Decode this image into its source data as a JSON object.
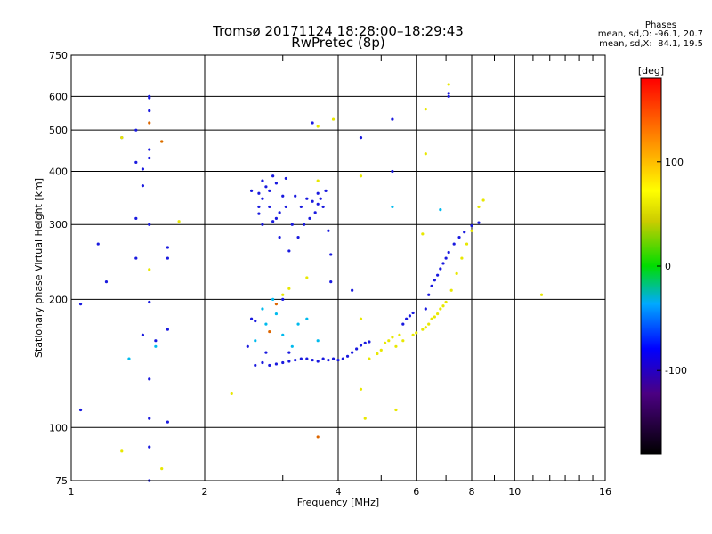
{
  "header": {
    "title_line1": "Tromsø 20171124 18:28:00–18:29:43",
    "title_line2": "RwPretec (8p)",
    "phases_heading": "Phases",
    "phases_o": "mean, sd,O: -96.1, 20.7",
    "phases_x": "mean, sd,X:  84.1, 19.5"
  },
  "colorbar": {
    "unit": "[deg]",
    "ticks": [
      "100",
      "0",
      "-100"
    ],
    "tick_values": [
      100,
      0,
      -100
    ],
    "range": [
      -180,
      180
    ]
  },
  "chart_data": {
    "type": "scatter",
    "title": "Tromsø 20171124 18:28:00–18:29:43",
    "subtitle": "RwPretec (8p)",
    "xlabel": "Frequency [MHz]",
    "ylabel": "Stationary phase Virtual Height [km]",
    "x_scale": "log2",
    "y_scale": "log",
    "xlim": [
      1,
      16
    ],
    "ylim": [
      75,
      750
    ],
    "x_ticks": [
      "1",
      "2",
      "4",
      "6",
      "8",
      "10",
      "16"
    ],
    "x_tick_values": [
      1,
      2,
      4,
      6,
      8,
      10,
      16
    ],
    "y_ticks": [
      "750",
      "600",
      "500",
      "400",
      "300",
      "200",
      "100",
      "75"
    ],
    "y_tick_values": [
      750,
      600,
      500,
      400,
      300,
      200,
      100,
      75
    ],
    "series": [
      {
        "values": [
          [
            1.05,
            195
          ],
          [
            1.05,
            110
          ],
          [
            1.15,
            270
          ],
          [
            1.2,
            220
          ],
          [
            1.3,
            480
          ],
          [
            1.4,
            420
          ],
          [
            1.4,
            500
          ],
          [
            1.4,
            250
          ],
          [
            1.4,
            310
          ],
          [
            1.45,
            405
          ],
          [
            1.45,
            370
          ],
          [
            1.45,
            165
          ],
          [
            1.5,
            600
          ],
          [
            1.5,
            595
          ],
          [
            1.5,
            555
          ],
          [
            1.5,
            450
          ],
          [
            1.5,
            430
          ],
          [
            1.5,
            300
          ],
          [
            1.5,
            197
          ],
          [
            1.5,
            130
          ],
          [
            1.5,
            105
          ],
          [
            1.5,
            90
          ],
          [
            1.5,
            75
          ],
          [
            1.55,
            160
          ],
          [
            1.65,
            265
          ],
          [
            1.65,
            250
          ],
          [
            1.65,
            103
          ],
          [
            1.65,
            170
          ],
          [
            2.5,
            155
          ],
          [
            2.55,
            180
          ],
          [
            2.55,
            360
          ],
          [
            2.6,
            178
          ],
          [
            2.6,
            140
          ],
          [
            2.65,
            355
          ],
          [
            2.65,
            318
          ],
          [
            2.65,
            330
          ],
          [
            2.7,
            345
          ],
          [
            2.7,
            380
          ],
          [
            2.7,
            300
          ],
          [
            2.75,
            368
          ],
          [
            2.75,
            150
          ],
          [
            2.8,
            360
          ],
          [
            2.8,
            330
          ],
          [
            2.85,
            390
          ],
          [
            2.85,
            305
          ],
          [
            2.9,
            375
          ],
          [
            2.9,
            310
          ],
          [
            2.95,
            280
          ],
          [
            2.95,
            320
          ],
          [
            3.0,
            350
          ],
          [
            3.0,
            200
          ],
          [
            3.05,
            385
          ],
          [
            3.05,
            330
          ],
          [
            3.1,
            150
          ],
          [
            3.1,
            260
          ],
          [
            3.15,
            300
          ],
          [
            3.2,
            350
          ],
          [
            3.25,
            280
          ],
          [
            3.3,
            330
          ],
          [
            3.35,
            300
          ],
          [
            3.4,
            345
          ],
          [
            3.45,
            310
          ],
          [
            3.5,
            340
          ],
          [
            3.55,
            320
          ],
          [
            3.6,
            335
          ],
          [
            3.6,
            355
          ],
          [
            3.65,
            345
          ],
          [
            3.7,
            330
          ],
          [
            3.75,
            360
          ],
          [
            3.8,
            290
          ],
          [
            3.5,
            520
          ],
          [
            2.7,
            142
          ],
          [
            2.8,
            140
          ],
          [
            2.9,
            141
          ],
          [
            3.0,
            142
          ],
          [
            3.1,
            143
          ],
          [
            3.2,
            144
          ],
          [
            3.3,
            145
          ],
          [
            3.4,
            145
          ],
          [
            3.5,
            144
          ],
          [
            3.6,
            143
          ],
          [
            3.7,
            145
          ],
          [
            3.8,
            144
          ],
          [
            3.9,
            145
          ],
          [
            4.0,
            144
          ],
          [
            4.1,
            145
          ],
          [
            4.2,
            147
          ],
          [
            4.3,
            150
          ],
          [
            4.4,
            153
          ],
          [
            4.5,
            156
          ],
          [
            4.6,
            158
          ],
          [
            4.7,
            159
          ],
          [
            5.6,
            175
          ],
          [
            5.7,
            180
          ],
          [
            5.8,
            183
          ],
          [
            5.9,
            186
          ],
          [
            6.3,
            190
          ],
          [
            6.4,
            205
          ],
          [
            6.5,
            215
          ],
          [
            6.6,
            222
          ],
          [
            6.7,
            228
          ],
          [
            6.8,
            236
          ],
          [
            6.9,
            243
          ],
          [
            7.0,
            250
          ],
          [
            7.1,
            258
          ],
          [
            7.3,
            270
          ],
          [
            7.5,
            280
          ],
          [
            7.7,
            288
          ],
          [
            8.0,
            298
          ],
          [
            8.3,
            303
          ],
          [
            5.3,
            400
          ],
          [
            5.3,
            530
          ],
          [
            7.1,
            610
          ],
          [
            7.1,
            600
          ],
          [
            4.5,
            480
          ],
          [
            4.3,
            210
          ],
          [
            3.85,
            220
          ],
          [
            3.85,
            255
          ]
        ]
      },
      {
        "values": [
          [
            2.6,
            160
          ],
          [
            2.7,
            190
          ],
          [
            2.75,
            175
          ],
          [
            2.85,
            200
          ],
          [
            2.9,
            185
          ],
          [
            3.0,
            165
          ],
          [
            3.15,
            155
          ],
          [
            3.25,
            175
          ],
          [
            3.4,
            180
          ],
          [
            3.6,
            160
          ],
          [
            1.55,
            155
          ],
          [
            1.35,
            145
          ],
          [
            5.3,
            330
          ],
          [
            6.8,
            325
          ]
        ]
      },
      {
        "values": [
          [
            1.3,
            480
          ],
          [
            1.5,
            235
          ],
          [
            1.6,
            470
          ],
          [
            1.75,
            305
          ],
          [
            3.0,
            205
          ],
          [
            3.1,
            212
          ],
          [
            3.4,
            225
          ],
          [
            3.6,
            380
          ],
          [
            3.6,
            510
          ],
          [
            3.9,
            530
          ],
          [
            4.5,
            390
          ],
          [
            4.5,
            180
          ],
          [
            4.6,
            105
          ],
          [
            4.7,
            145
          ],
          [
            4.9,
            149
          ],
          [
            5.0,
            152
          ],
          [
            5.1,
            158
          ],
          [
            5.2,
            160
          ],
          [
            5.3,
            163
          ],
          [
            5.4,
            155
          ],
          [
            5.5,
            165
          ],
          [
            5.6,
            160
          ],
          [
            5.9,
            165
          ],
          [
            6.0,
            167
          ],
          [
            6.2,
            170
          ],
          [
            6.3,
            172
          ],
          [
            6.4,
            175
          ],
          [
            6.5,
            180
          ],
          [
            6.6,
            182
          ],
          [
            6.7,
            185
          ],
          [
            6.8,
            190
          ],
          [
            6.9,
            193
          ],
          [
            7.0,
            197
          ],
          [
            7.2,
            210
          ],
          [
            7.4,
            230
          ],
          [
            7.6,
            250
          ],
          [
            7.8,
            270
          ],
          [
            8.0,
            290
          ],
          [
            8.3,
            330
          ],
          [
            8.5,
            342
          ],
          [
            6.3,
            440
          ],
          [
            6.3,
            560
          ],
          [
            5.4,
            110
          ],
          [
            4.5,
            123
          ],
          [
            2.3,
            120
          ],
          [
            1.3,
            88
          ],
          [
            1.6,
            80
          ],
          [
            11.5,
            205
          ],
          [
            6.2,
            285
          ],
          [
            7.1,
            640
          ]
        ]
      },
      {
        "values": [
          [
            1.5,
            520
          ],
          [
            1.6,
            470
          ],
          [
            3.6,
            95
          ],
          [
            2.8,
            168
          ],
          [
            2.9,
            195
          ]
        ]
      }
    ]
  }
}
